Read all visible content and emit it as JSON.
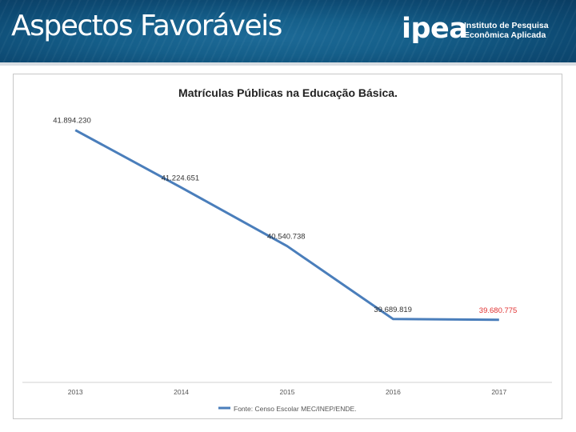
{
  "slide": {
    "title": "Aspectos Favoráveis",
    "logo": {
      "word": "ipea",
      "line1": "Instituto de Pesquisa",
      "line2": "Econômica Aplicada"
    }
  },
  "chart_data": {
    "type": "line",
    "title": "Matrículas Públicas na Educação Básica.",
    "categories": [
      "2013",
      "2014",
      "2015",
      "2016",
      "2017"
    ],
    "series": [
      {
        "name": "Fonte: Censo Escolar MEC/INEP/ENDE.",
        "values": [
          41894230,
          41224651,
          40540738,
          39689819,
          39680775
        ],
        "labels": [
          "41.894.230",
          "41.224.651",
          "40.540.738",
          "39.689.819",
          "39.680.775"
        ],
        "color": "#4a7ebb",
        "highlight_color": "#e03030"
      }
    ],
    "ylim": [
      38950000,
      42200000
    ],
    "xlabel": "",
    "ylabel": "",
    "grid": false,
    "legend": "bottom"
  }
}
